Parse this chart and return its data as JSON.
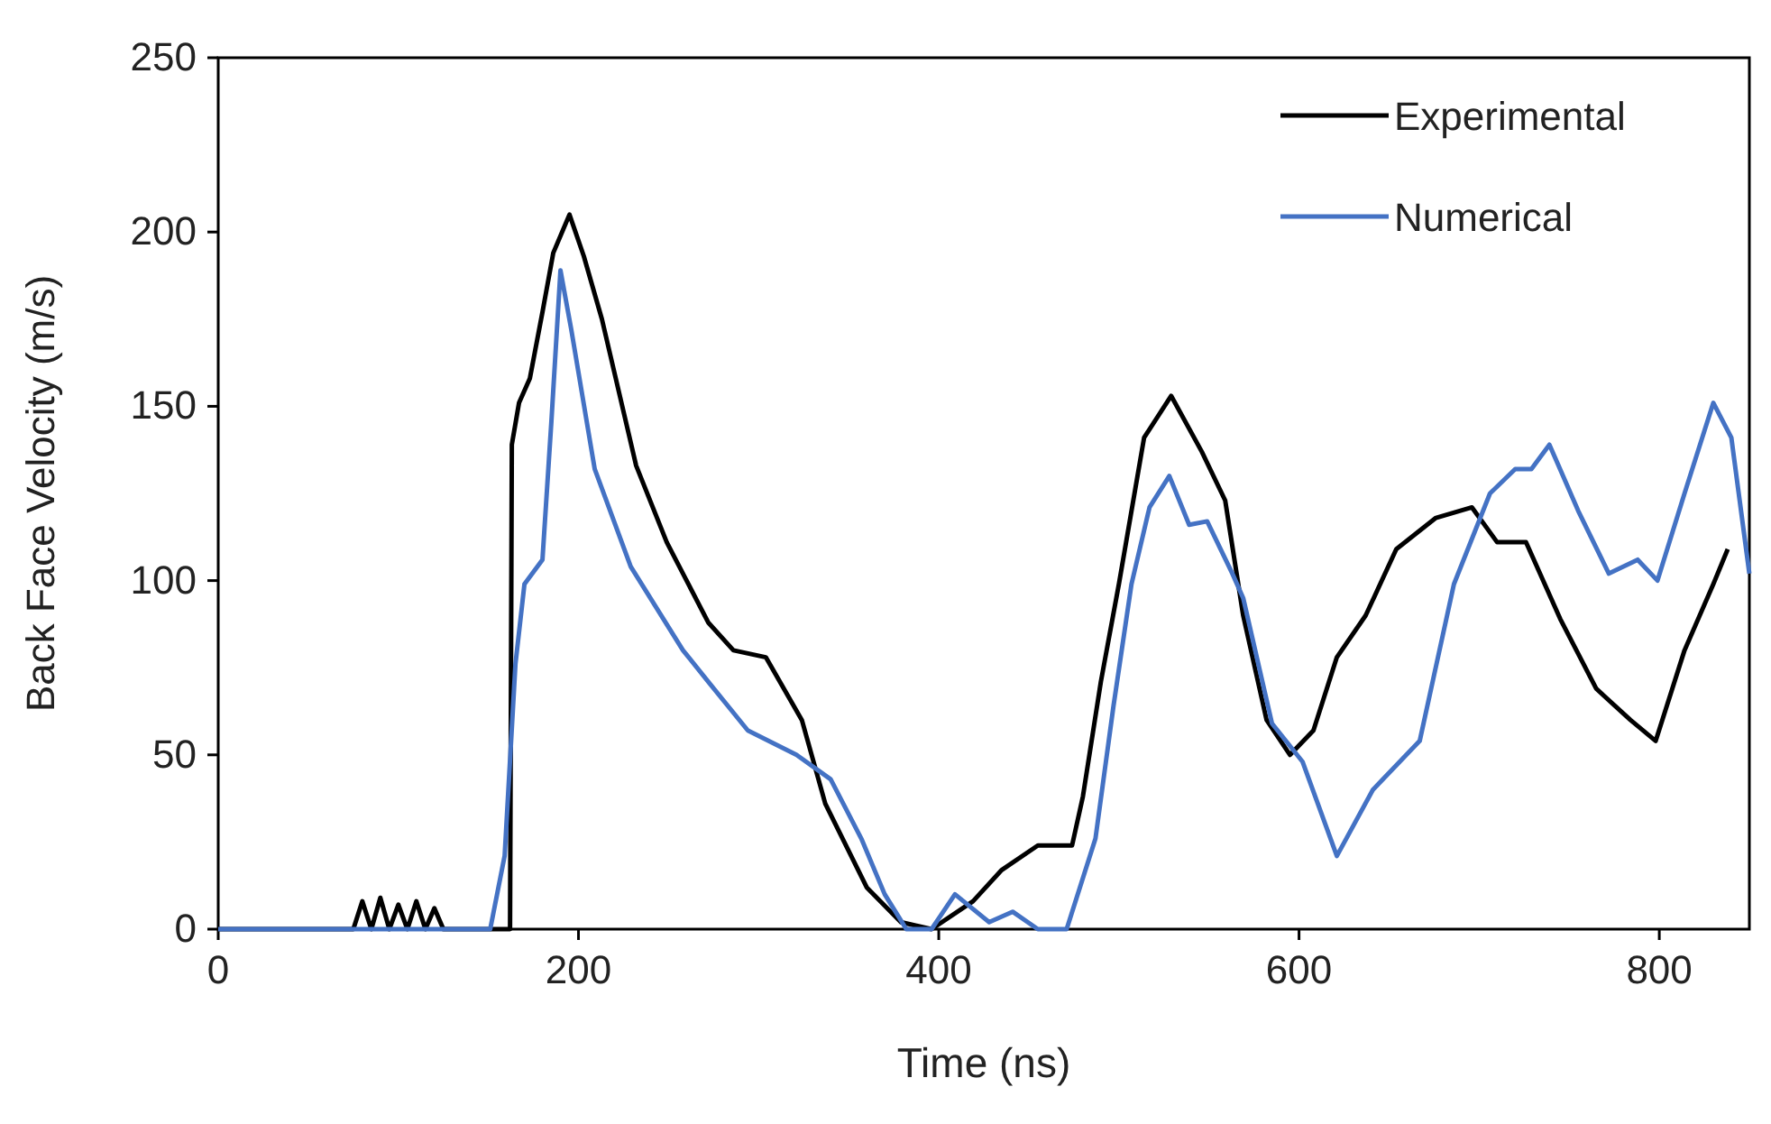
{
  "chart_data": {
    "type": "line",
    "xlabel": "Time (ns)",
    "ylabel": "Back Face Velocity (m/s)",
    "xlim": [
      0,
      850
    ],
    "ylim": [
      0,
      250
    ],
    "xticks": [
      0,
      200,
      400,
      600,
      800
    ],
    "yticks": [
      0,
      50,
      100,
      150,
      200,
      250
    ],
    "grid": false,
    "legend": "top right",
    "line_style": "solid",
    "series": [
      {
        "name": "Experimental",
        "color": "#000000",
        "x": [
          0,
          75,
          80,
          85,
          90,
          95,
          100,
          105,
          110,
          115,
          120,
          125,
          130,
          162,
          163,
          167,
          173,
          180,
          186,
          195,
          203,
          213,
          232,
          249,
          272,
          286,
          304,
          324,
          337,
          360,
          379,
          396,
          419,
          435,
          455,
          474,
          480,
          490,
          500,
          514,
          529,
          546,
          559,
          569,
          582,
          595,
          608,
          621,
          637,
          654,
          676,
          696,
          710,
          726,
          745,
          765,
          784,
          798,
          814,
          830,
          838
        ],
        "values": [
          0,
          0,
          8,
          0,
          9,
          0,
          7,
          0,
          8,
          0,
          6,
          0,
          0,
          0,
          139,
          151,
          158,
          177,
          194,
          205,
          193,
          175,
          133,
          111,
          88,
          80,
          78,
          60,
          36,
          12,
          2,
          0,
          8,
          17,
          24,
          24,
          38,
          71,
          99,
          141,
          153,
          137,
          123,
          90,
          60,
          50,
          57,
          78,
          90,
          109,
          118,
          121,
          111,
          111,
          89,
          69,
          60,
          54,
          80,
          99,
          109
        ]
      },
      {
        "name": "Numerical",
        "color": "#4472c4",
        "x": [
          0,
          151,
          159,
          165,
          170,
          180,
          185,
          190,
          196,
          209,
          229,
          258,
          272,
          294,
          321,
          340,
          357,
          370,
          382,
          396,
          409,
          428,
          441,
          455,
          471,
          487,
          497,
          507,
          517,
          528,
          539,
          549,
          563,
          569,
          585,
          602,
          621,
          641,
          667,
          686,
          706,
          720,
          729,
          739,
          755,
          772,
          788,
          799,
          814,
          830,
          840,
          850
        ],
        "values": [
          0,
          0,
          21,
          76,
          99,
          106,
          146,
          189,
          172,
          132,
          104,
          80,
          71,
          57,
          50,
          43,
          26,
          10,
          0,
          0,
          10,
          2,
          5,
          0,
          0,
          26,
          64,
          99,
          121,
          130,
          116,
          117,
          102,
          95,
          59,
          48,
          21,
          40,
          54,
          99,
          125,
          132,
          132,
          139,
          120,
          102,
          106,
          100,
          125,
          151,
          141,
          102
        ]
      }
    ]
  }
}
